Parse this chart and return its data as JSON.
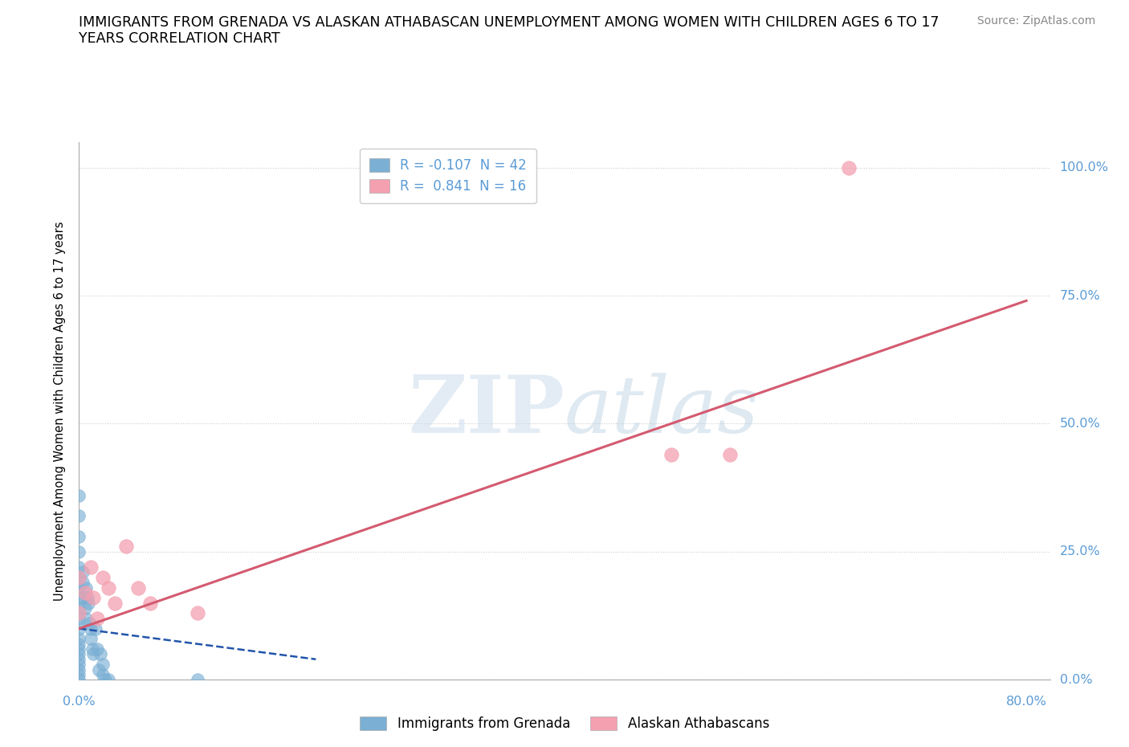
{
  "title": "IMMIGRANTS FROM GRENADA VS ALASKAN ATHABASCAN UNEMPLOYMENT AMONG WOMEN WITH CHILDREN AGES 6 TO 17\nYEARS CORRELATION CHART",
  "source_text": "Source: ZipAtlas.com",
  "ylabel": "Unemployment Among Women with Children Ages 6 to 17 years",
  "xlim": [
    0.0,
    0.82
  ],
  "ylim": [
    0.0,
    1.05
  ],
  "yticks": [
    0.0,
    0.25,
    0.5,
    0.75,
    1.0
  ],
  "ytick_labels": [
    "0.0%",
    "25.0%",
    "50.0%",
    "75.0%",
    "100.0%"
  ],
  "legend_r1": "R = -0.107  N = 42",
  "legend_r2": "R =  0.841  N = 16",
  "blue_color": "#7bafd4",
  "pink_color": "#f4a0b0",
  "blue_line_color": "#2255aa",
  "pink_line_color": "#d45a70",
  "tick_label_color": "#5b9bd5",
  "blue_points_x": [
    0.0,
    0.0,
    0.0,
    0.0,
    0.0,
    0.0,
    0.0,
    0.0,
    0.0,
    0.0,
    0.0,
    0.0,
    0.0,
    0.0,
    0.0,
    0.0,
    0.0,
    0.0,
    0.0,
    0.0,
    0.003,
    0.003,
    0.004,
    0.005,
    0.006,
    0.006,
    0.007,
    0.008,
    0.009,
    0.01,
    0.01,
    0.011,
    0.012,
    0.014,
    0.015,
    0.017,
    0.018,
    0.02,
    0.02,
    0.022,
    0.025,
    0.1
  ],
  "blue_points_y": [
    0.36,
    0.32,
    0.28,
    0.25,
    0.22,
    0.2,
    0.18,
    0.16,
    0.14,
    0.12,
    0.1,
    0.08,
    0.07,
    0.06,
    0.05,
    0.04,
    0.03,
    0.02,
    0.01,
    0.0,
    0.21,
    0.19,
    0.16,
    0.14,
    0.12,
    0.18,
    0.16,
    0.15,
    0.11,
    0.1,
    0.08,
    0.06,
    0.05,
    0.1,
    0.06,
    0.02,
    0.05,
    0.03,
    0.01,
    0.0,
    0.0,
    0.0
  ],
  "pink_points_x": [
    0.0,
    0.0,
    0.005,
    0.01,
    0.012,
    0.015,
    0.02,
    0.025,
    0.03,
    0.04,
    0.05,
    0.06,
    0.1,
    0.5,
    0.55,
    0.65
  ],
  "pink_points_y": [
    0.2,
    0.13,
    0.17,
    0.22,
    0.16,
    0.12,
    0.2,
    0.18,
    0.15,
    0.26,
    0.18,
    0.15,
    0.13,
    0.44,
    0.44,
    1.0
  ],
  "blue_trend_x": [
    0.0,
    0.2
  ],
  "blue_trend_y": [
    0.1,
    0.04
  ],
  "pink_trend_x": [
    0.0,
    0.8
  ],
  "pink_trend_y": [
    0.1,
    0.74
  ]
}
